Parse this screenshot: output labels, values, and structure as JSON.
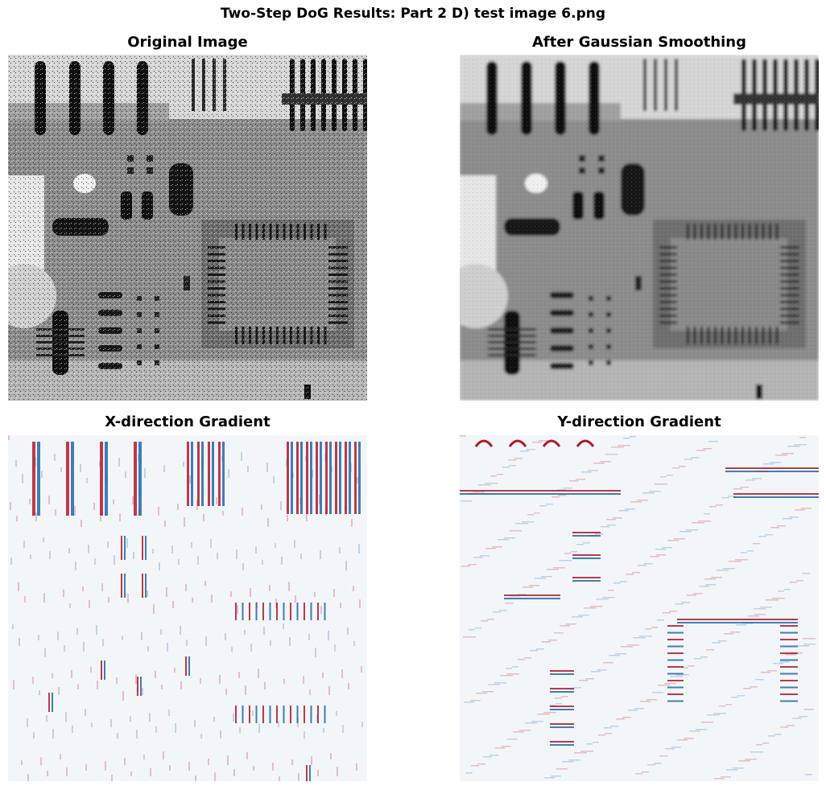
{
  "figure": {
    "title": "Two-Step DoG Results: Part 2 D) test image 6.png"
  },
  "panels": [
    {
      "title": "Original Image",
      "colormap": "gray"
    },
    {
      "title": "After Gaussian Smoothing",
      "colormap": "gray"
    },
    {
      "title": "X-direction Gradient",
      "colormap": "RdBu"
    },
    {
      "title": "Y-direction Gradient",
      "colormap": "RdBu"
    }
  ],
  "colors": {
    "background": "#ffffff",
    "gray_dark": "#111111",
    "gray_mid": "#808080",
    "gray_light": "#e8e8e8",
    "gradient_positive": "#b2182b",
    "gradient_negative": "#2166ac",
    "gradient_zero": "#f2f5f8"
  }
}
